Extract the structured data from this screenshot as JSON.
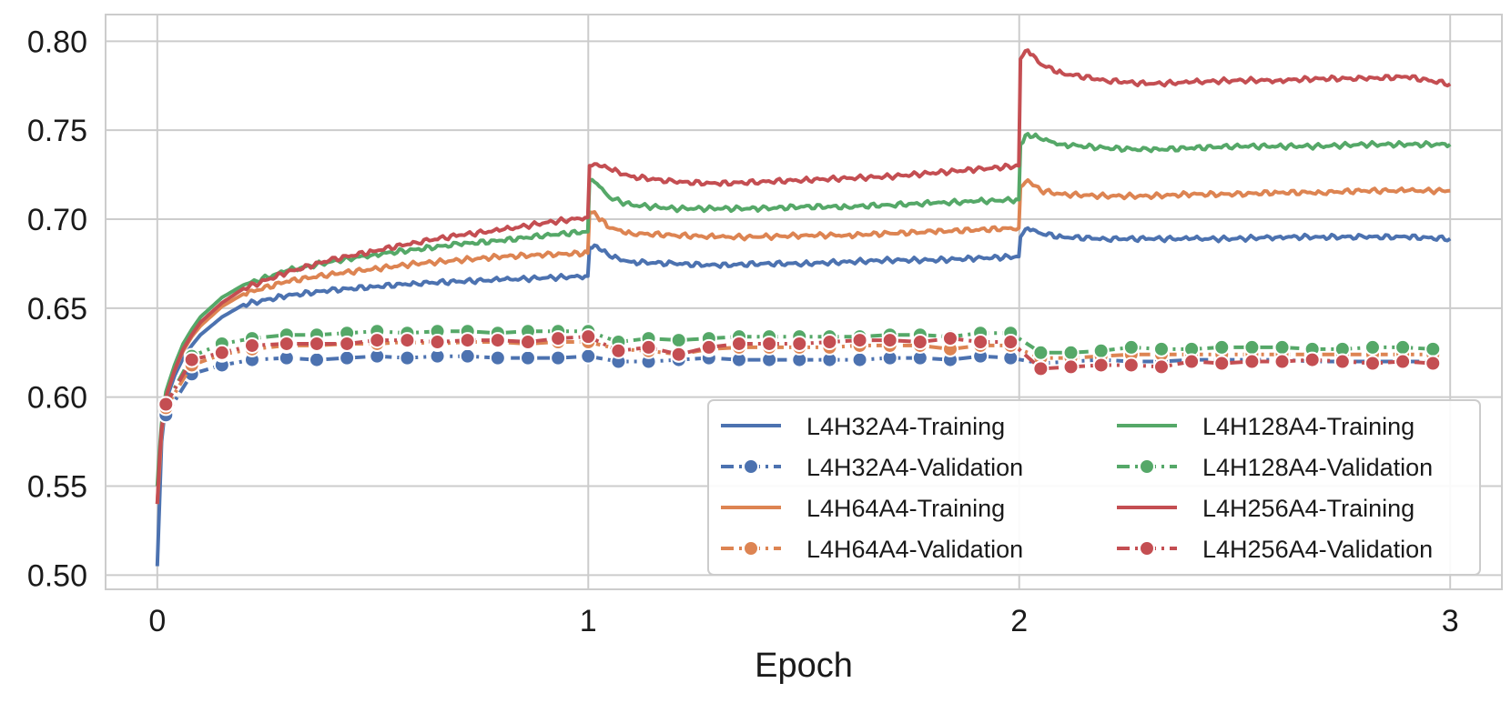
{
  "chart_data": {
    "type": "line",
    "title": "",
    "xlabel": "Epoch",
    "ylabel": "",
    "xlim": [
      -0.12,
      3.12
    ],
    "ylim": [
      0.492,
      0.815
    ],
    "x_ticks": [
      0,
      1,
      2,
      3
    ],
    "x_tick_labels": [
      "0",
      "1",
      "2",
      "3"
    ],
    "y_ticks": [
      0.5,
      0.55,
      0.6,
      0.65,
      0.7,
      0.75,
      0.8
    ],
    "y_tick_labels": [
      "0.50",
      "0.55",
      "0.60",
      "0.65",
      "0.70",
      "0.75",
      "0.80"
    ],
    "grid": true,
    "legend_position": "lower-right",
    "legend_columns": 2,
    "series": [
      {
        "name": "L4H32A4-Training",
        "style": "solid",
        "color": "#4c72b0",
        "x": [
          0.0,
          0.005,
          0.01,
          0.02,
          0.04,
          0.06,
          0.08,
          0.1,
          0.15,
          0.2,
          0.3,
          0.4,
          0.5,
          0.6,
          0.7,
          0.8,
          0.9,
          0.999,
          1.003,
          1.02,
          1.05,
          1.1,
          1.2,
          1.3,
          1.4,
          1.5,
          1.6,
          1.7,
          1.8,
          1.9,
          1.999,
          2.003,
          2.02,
          2.05,
          2.1,
          2.2,
          2.3,
          2.4,
          2.5,
          2.6,
          2.7,
          2.8,
          2.9,
          3.0
        ],
        "y": [
          0.505,
          0.54,
          0.575,
          0.598,
          0.612,
          0.622,
          0.629,
          0.635,
          0.645,
          0.652,
          0.657,
          0.66,
          0.662,
          0.664,
          0.665,
          0.666,
          0.667,
          0.668,
          0.684,
          0.685,
          0.679,
          0.676,
          0.675,
          0.674,
          0.675,
          0.675,
          0.676,
          0.677,
          0.677,
          0.678,
          0.679,
          0.69,
          0.695,
          0.692,
          0.69,
          0.689,
          0.689,
          0.689,
          0.689,
          0.69,
          0.69,
          0.69,
          0.69,
          0.689
        ]
      },
      {
        "name": "L4H32A4-Validation",
        "style": "dashed-dot-marker",
        "color": "#4c72b0",
        "x": [
          0.02,
          0.08,
          0.15,
          0.22,
          0.3,
          0.37,
          0.44,
          0.51,
          0.58,
          0.65,
          0.72,
          0.79,
          0.86,
          0.93,
          1.0,
          1.07,
          1.14,
          1.21,
          1.28,
          1.35,
          1.42,
          1.49,
          1.56,
          1.63,
          1.7,
          1.77,
          1.84,
          1.91,
          1.98,
          2.05,
          2.12,
          2.19,
          2.26,
          2.33,
          2.4,
          2.47,
          2.54,
          2.61,
          2.68,
          2.75,
          2.82,
          2.89,
          2.96
        ],
        "y": [
          0.59,
          0.613,
          0.618,
          0.621,
          0.622,
          0.621,
          0.622,
          0.623,
          0.622,
          0.623,
          0.623,
          0.622,
          0.622,
          0.622,
          0.623,
          0.62,
          0.62,
          0.621,
          0.622,
          0.621,
          0.621,
          0.621,
          0.621,
          0.621,
          0.622,
          0.622,
          0.621,
          0.623,
          0.622,
          0.619,
          0.62,
          0.621,
          0.62,
          0.62,
          0.621,
          0.621,
          0.621,
          0.621,
          0.62,
          0.62,
          0.62,
          0.62,
          0.62
        ]
      },
      {
        "name": "L4H64A4-Training",
        "style": "solid",
        "color": "#dd8452",
        "x": [
          0.0,
          0.005,
          0.01,
          0.02,
          0.04,
          0.06,
          0.08,
          0.1,
          0.15,
          0.2,
          0.3,
          0.4,
          0.5,
          0.6,
          0.7,
          0.8,
          0.9,
          0.999,
          1.003,
          1.02,
          1.05,
          1.1,
          1.2,
          1.3,
          1.4,
          1.5,
          1.6,
          1.7,
          1.8,
          1.9,
          1.999,
          2.003,
          2.02,
          2.05,
          2.1,
          2.2,
          2.3,
          2.4,
          2.5,
          2.6,
          2.7,
          2.8,
          2.9,
          3.0
        ],
        "y": [
          0.54,
          0.56,
          0.58,
          0.6,
          0.615,
          0.626,
          0.634,
          0.64,
          0.651,
          0.658,
          0.665,
          0.669,
          0.672,
          0.675,
          0.677,
          0.679,
          0.68,
          0.681,
          0.704,
          0.702,
          0.695,
          0.692,
          0.691,
          0.69,
          0.69,
          0.691,
          0.691,
          0.692,
          0.693,
          0.694,
          0.695,
          0.718,
          0.722,
          0.716,
          0.714,
          0.713,
          0.713,
          0.714,
          0.714,
          0.715,
          0.715,
          0.716,
          0.716,
          0.716
        ]
      },
      {
        "name": "L4H64A4-Validation",
        "style": "dashed-dot-marker",
        "color": "#dd8452",
        "x": [
          0.02,
          0.08,
          0.15,
          0.22,
          0.3,
          0.37,
          0.44,
          0.51,
          0.58,
          0.65,
          0.72,
          0.79,
          0.86,
          0.93,
          1.0,
          1.07,
          1.14,
          1.21,
          1.28,
          1.35,
          1.42,
          1.49,
          1.56,
          1.63,
          1.7,
          1.77,
          1.84,
          1.91,
          1.98,
          2.05,
          2.12,
          2.19,
          2.26,
          2.33,
          2.4,
          2.47,
          2.54,
          2.61,
          2.68,
          2.75,
          2.82,
          2.89,
          2.96
        ],
        "y": [
          0.594,
          0.618,
          0.624,
          0.627,
          0.629,
          0.629,
          0.63,
          0.63,
          0.631,
          0.63,
          0.631,
          0.631,
          0.63,
          0.631,
          0.631,
          0.627,
          0.626,
          0.624,
          0.627,
          0.628,
          0.628,
          0.628,
          0.628,
          0.629,
          0.629,
          0.629,
          0.627,
          0.629,
          0.629,
          0.622,
          0.622,
          0.623,
          0.624,
          0.624,
          0.624,
          0.624,
          0.624,
          0.624,
          0.624,
          0.624,
          0.624,
          0.624,
          0.624
        ]
      },
      {
        "name": "L4H128A4-Training",
        "style": "solid",
        "color": "#55a868",
        "x": [
          0.0,
          0.005,
          0.01,
          0.02,
          0.04,
          0.06,
          0.08,
          0.1,
          0.15,
          0.2,
          0.3,
          0.4,
          0.5,
          0.6,
          0.7,
          0.8,
          0.9,
          0.999,
          1.003,
          1.02,
          1.05,
          1.1,
          1.2,
          1.3,
          1.4,
          1.5,
          1.6,
          1.7,
          1.8,
          1.9,
          1.999,
          2.003,
          2.02,
          2.05,
          2.1,
          2.2,
          2.3,
          2.4,
          2.5,
          2.6,
          2.7,
          2.8,
          2.9,
          3.0
        ],
        "y": [
          0.55,
          0.57,
          0.585,
          0.603,
          0.618,
          0.63,
          0.638,
          0.645,
          0.656,
          0.663,
          0.671,
          0.676,
          0.68,
          0.683,
          0.686,
          0.688,
          0.691,
          0.693,
          0.722,
          0.72,
          0.712,
          0.708,
          0.706,
          0.706,
          0.706,
          0.707,
          0.707,
          0.708,
          0.709,
          0.71,
          0.711,
          0.742,
          0.748,
          0.745,
          0.742,
          0.74,
          0.739,
          0.74,
          0.741,
          0.741,
          0.741,
          0.742,
          0.742,
          0.742
        ]
      },
      {
        "name": "L4H128A4-Validation",
        "style": "dashed-dot-marker",
        "color": "#55a868",
        "x": [
          0.02,
          0.08,
          0.15,
          0.22,
          0.3,
          0.37,
          0.44,
          0.51,
          0.58,
          0.65,
          0.72,
          0.79,
          0.86,
          0.93,
          1.0,
          1.07,
          1.14,
          1.21,
          1.28,
          1.35,
          1.42,
          1.49,
          1.56,
          1.63,
          1.7,
          1.77,
          1.84,
          1.91,
          1.98,
          2.05,
          2.12,
          2.19,
          2.26,
          2.33,
          2.4,
          2.47,
          2.54,
          2.61,
          2.68,
          2.75,
          2.82,
          2.89,
          2.96
        ],
        "y": [
          0.596,
          0.623,
          0.63,
          0.633,
          0.635,
          0.635,
          0.636,
          0.637,
          0.636,
          0.637,
          0.637,
          0.636,
          0.637,
          0.637,
          0.637,
          0.631,
          0.633,
          0.632,
          0.633,
          0.634,
          0.634,
          0.634,
          0.634,
          0.634,
          0.635,
          0.635,
          0.634,
          0.636,
          0.636,
          0.625,
          0.625,
          0.626,
          0.628,
          0.627,
          0.627,
          0.628,
          0.628,
          0.628,
          0.627,
          0.627,
          0.628,
          0.628,
          0.627
        ]
      },
      {
        "name": "L4H256A4-Training",
        "style": "solid",
        "color": "#c44e52",
        "x": [
          0.0,
          0.005,
          0.01,
          0.02,
          0.04,
          0.06,
          0.08,
          0.1,
          0.15,
          0.2,
          0.3,
          0.4,
          0.5,
          0.6,
          0.7,
          0.8,
          0.9,
          0.999,
          1.003,
          1.02,
          1.05,
          1.1,
          1.2,
          1.3,
          1.4,
          1.5,
          1.6,
          1.7,
          1.8,
          1.9,
          1.999,
          2.003,
          2.02,
          2.05,
          2.1,
          2.2,
          2.3,
          2.4,
          2.5,
          2.6,
          2.7,
          2.8,
          2.9,
          3.0
        ],
        "y": [
          0.54,
          0.565,
          0.582,
          0.6,
          0.615,
          0.627,
          0.635,
          0.642,
          0.653,
          0.661,
          0.67,
          0.677,
          0.682,
          0.687,
          0.691,
          0.694,
          0.698,
          0.701,
          0.73,
          0.731,
          0.728,
          0.724,
          0.721,
          0.72,
          0.721,
          0.722,
          0.723,
          0.724,
          0.726,
          0.728,
          0.73,
          0.79,
          0.795,
          0.787,
          0.782,
          0.778,
          0.776,
          0.777,
          0.778,
          0.778,
          0.779,
          0.779,
          0.78,
          0.776
        ]
      },
      {
        "name": "L4H256A4-Validation",
        "style": "dashed-dot-marker",
        "color": "#c44e52",
        "x": [
          0.02,
          0.08,
          0.15,
          0.22,
          0.3,
          0.37,
          0.44,
          0.51,
          0.58,
          0.65,
          0.72,
          0.79,
          0.86,
          0.93,
          1.0,
          1.07,
          1.14,
          1.21,
          1.28,
          1.35,
          1.42,
          1.49,
          1.56,
          1.63,
          1.7,
          1.77,
          1.84,
          1.91,
          1.98,
          2.05,
          2.12,
          2.19,
          2.26,
          2.33,
          2.4,
          2.47,
          2.54,
          2.61,
          2.68,
          2.75,
          2.82,
          2.89,
          2.96
        ],
        "y": [
          0.596,
          0.621,
          0.625,
          0.629,
          0.63,
          0.63,
          0.63,
          0.632,
          0.632,
          0.631,
          0.632,
          0.632,
          0.631,
          0.633,
          0.634,
          0.626,
          0.628,
          0.624,
          0.628,
          0.63,
          0.63,
          0.63,
          0.631,
          0.632,
          0.632,
          0.631,
          0.633,
          0.631,
          0.631,
          0.616,
          0.617,
          0.618,
          0.618,
          0.617,
          0.62,
          0.619,
          0.62,
          0.62,
          0.621,
          0.62,
          0.619,
          0.62,
          0.619
        ]
      }
    ]
  }
}
